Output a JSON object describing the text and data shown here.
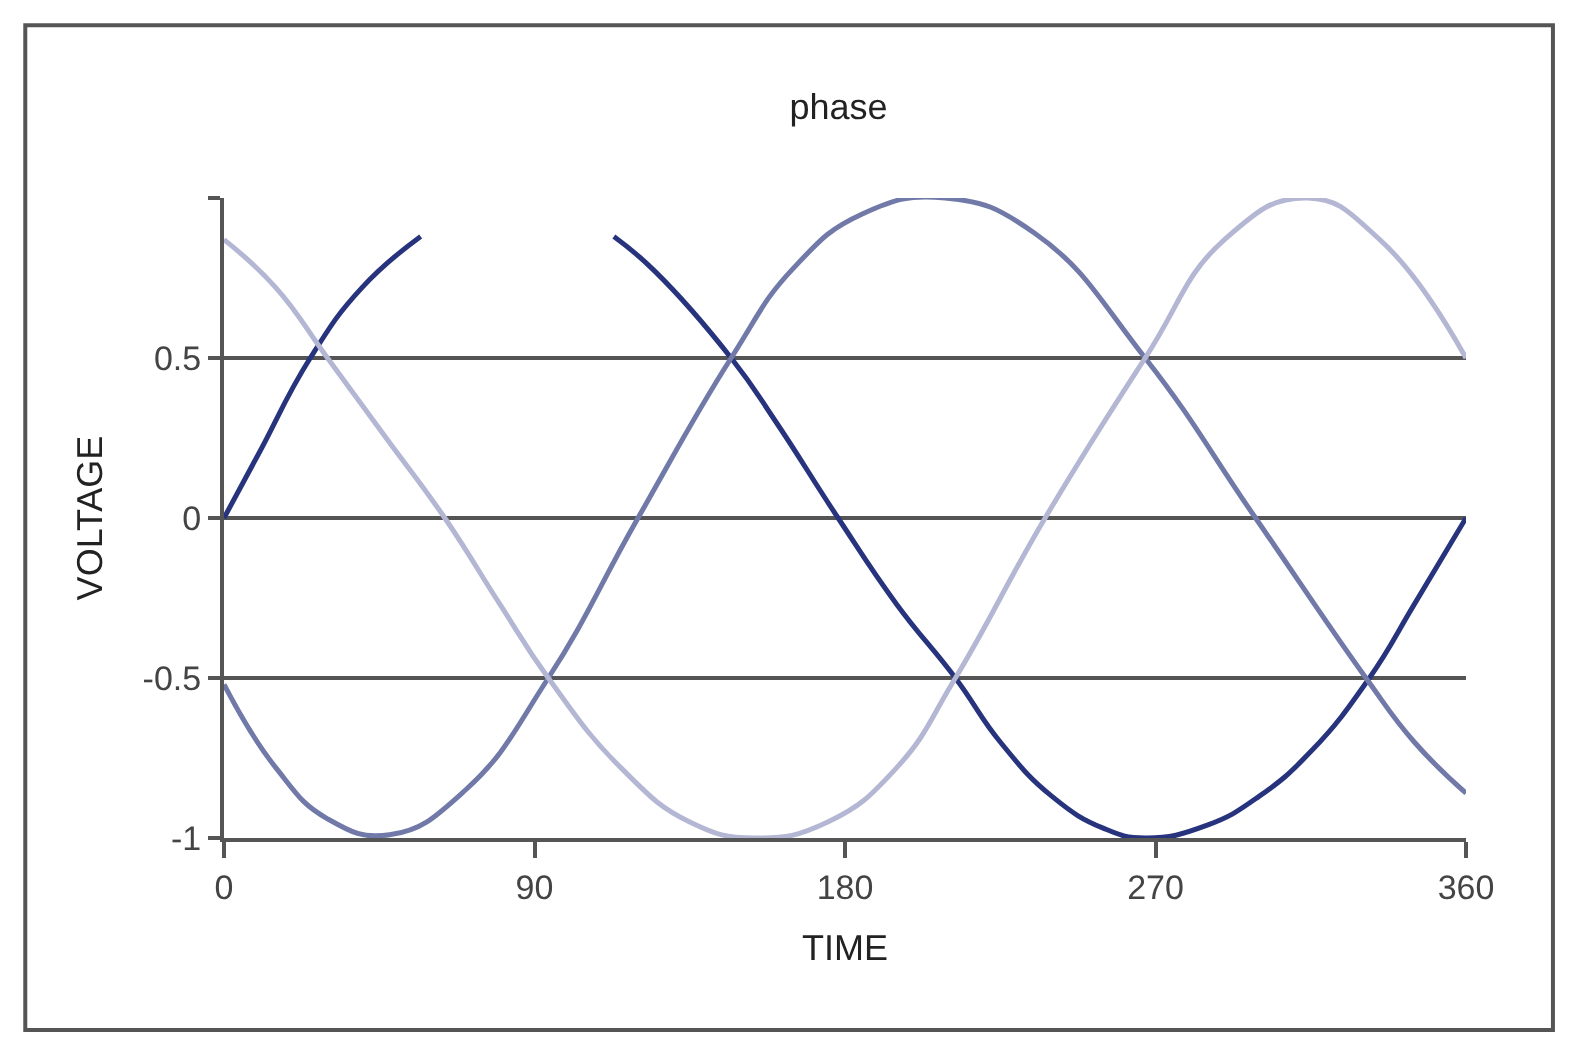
{
  "chart_data": {
    "type": "line",
    "title": "phase",
    "xlabel": "TIME",
    "ylabel": "VOLTAGE",
    "xlim": [
      0,
      360
    ],
    "xticks": [
      0,
      90,
      180,
      270,
      360
    ],
    "ylim": [
      -1,
      1
    ],
    "yticks": [
      -1,
      -0.5,
      0,
      0.5,
      {
        "value": 1,
        "label": null
      }
    ],
    "grid": "y",
    "marker": "none",
    "line_style": "solid",
    "series": [
      {
        "color": "#27347d",
        "x": [
          0,
          10,
          25,
          40,
          57,
          70,
          90,
          100,
          113,
          125,
          147,
          160,
          178,
          195,
          212,
          225,
          240,
          255,
          267,
          285,
          300,
          315,
          332,
          345,
          360
        ],
        "values": [
          0,
          0.2,
          0.5,
          0.72,
          0.88,
          null,
          null,
          null,
          0.88,
          0.77,
          0.5,
          0.3,
          0,
          -0.27,
          -0.5,
          -0.7,
          -0.87,
          -0.97,
          -1,
          -0.96,
          -0.87,
          -0.73,
          -0.5,
          -0.27,
          0
        ]
      },
      {
        "color": "#7179a8",
        "x": [
          0,
          15,
          30,
          48,
          70,
          94,
          120,
          147,
          165,
          185,
          209,
          235,
          267,
          299,
          331,
          345,
          360
        ],
        "values": [
          -0.52,
          -0.78,
          -0.94,
          -0.99,
          -0.85,
          -0.5,
          0,
          0.5,
          0.78,
          0.95,
          1,
          0.89,
          0.5,
          0,
          -0.5,
          -0.7,
          -0.86
        ]
      },
      {
        "color": "#b3b7d3",
        "x": [
          0,
          15,
          30,
          47,
          64,
          80,
          94,
          115,
          135,
          154,
          175,
          195,
          212,
          238,
          267,
          290,
          314,
          335,
          360
        ],
        "values": [
          0.87,
          0.72,
          0.5,
          0.25,
          0,
          -0.27,
          -0.5,
          -0.78,
          -0.95,
          -1,
          -0.95,
          -0.78,
          -0.5,
          0,
          0.5,
          0.87,
          1,
          0.87,
          0.5
        ]
      }
    ]
  }
}
